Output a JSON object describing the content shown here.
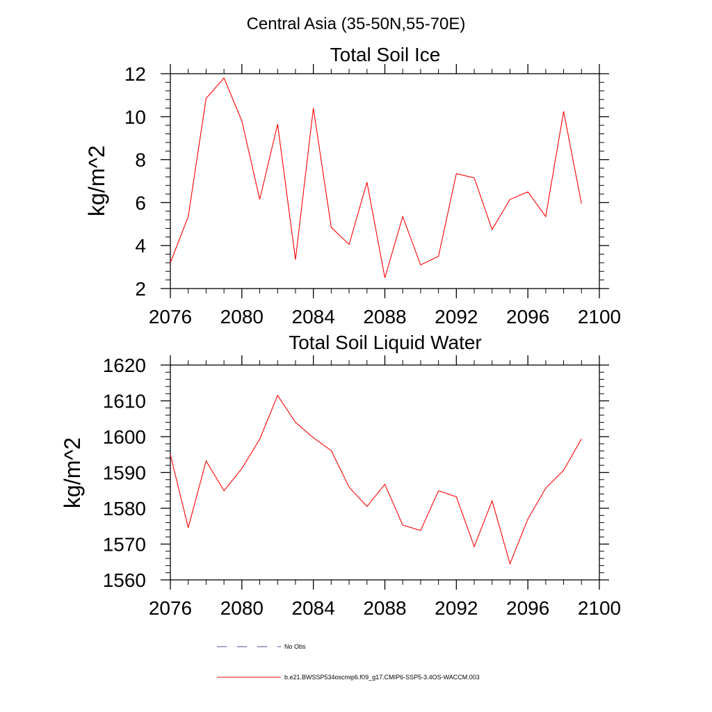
{
  "figure_title": "Central Asia (35-50N,55-70E)",
  "chart_data": [
    {
      "type": "line",
      "title": "Total Soil Ice",
      "xlabel": "",
      "ylabel": "kg/m^2",
      "xlim": [
        2076,
        2100
      ],
      "ylim": [
        2,
        12
      ],
      "xticks": [
        2076,
        2080,
        2084,
        2088,
        2092,
        2096,
        2100
      ],
      "xtick_labels": [
        "2076",
        "2080",
        "2084",
        "2088",
        "2092",
        "2096",
        "2100"
      ],
      "yticks": [
        2,
        4,
        6,
        8,
        10,
        12
      ],
      "ytick_labels": [
        "2",
        "4",
        "6",
        "8",
        "10",
        "12"
      ],
      "x": [
        2076,
        2077,
        2078,
        2079,
        2080,
        2081,
        2082,
        2083,
        2084,
        2085,
        2086,
        2087,
        2088,
        2089,
        2090,
        2091,
        2092,
        2093,
        2094,
        2095,
        2096,
        2097,
        2098,
        2099
      ],
      "series": [
        {
          "name": "b.e21.BWSSP534oscmip6.f09_g17.CMIP6-SSP5-3.4OS-WACCM.003",
          "color": "#ff0000",
          "values": [
            3.2,
            5.35,
            10.85,
            11.8,
            9.8,
            6.15,
            9.65,
            3.35,
            10.4,
            4.85,
            4.05,
            6.95,
            2.5,
            5.35,
            3.1,
            3.5,
            7.35,
            7.15,
            4.75,
            6.15,
            6.5,
            5.35,
            10.25,
            5.95
          ]
        }
      ]
    },
    {
      "type": "line",
      "title": "Total Soil Liquid Water",
      "xlabel": "",
      "ylabel": "kg/m^2",
      "xlim": [
        2076,
        2100
      ],
      "ylim": [
        1560,
        1620
      ],
      "xticks": [
        2076,
        2080,
        2084,
        2088,
        2092,
        2096,
        2100
      ],
      "xtick_labels": [
        "2076",
        "2080",
        "2084",
        "2088",
        "2092",
        "2096",
        "2100"
      ],
      "yticks": [
        1560,
        1570,
        1580,
        1590,
        1600,
        1610,
        1620
      ],
      "ytick_labels": [
        "1560",
        "1570",
        "1580",
        "1590",
        "1600",
        "1610",
        "1620"
      ],
      "x": [
        2076,
        2077,
        2078,
        2079,
        2080,
        2081,
        2082,
        2083,
        2084,
        2085,
        2086,
        2087,
        2088,
        2089,
        2090,
        2091,
        2092,
        2093,
        2094,
        2095,
        2096,
        2097,
        2098,
        2099
      ],
      "series": [
        {
          "name": "b.e21.BWSSP534oscmip6.f09_g17.CMIP6-SSP5-3.4OS-WACCM.003",
          "color": "#ff0000",
          "values": [
            1595,
            1574.6,
            1593.2,
            1584.9,
            1591.1,
            1599.3,
            1611.5,
            1604,
            1599.7,
            1596.1,
            1585.9,
            1580.5,
            1586.7,
            1575.3,
            1573.8,
            1584.9,
            1583.2,
            1569.3,
            1582.1,
            1564.5,
            1577,
            1585.6,
            1590.6,
            1599.4
          ]
        }
      ]
    }
  ],
  "legend": [
    {
      "label": "No Obs",
      "color": "#4a4a8a",
      "style": "dashed"
    },
    {
      "label": "b.e21.BWSSP534oscmip6.f09_g17.CMIP6-SSP5-3.4OS-WACCM.003",
      "color": "#ff0000",
      "style": "solid"
    }
  ]
}
